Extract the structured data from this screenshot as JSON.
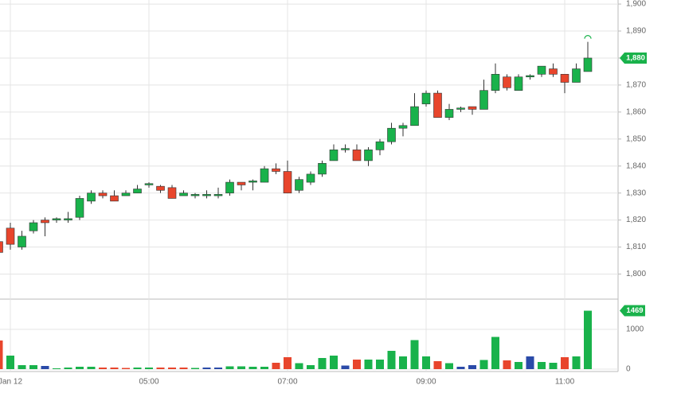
{
  "chart_data": {
    "type": "candlestick",
    "x": [
      "02:50",
      "03:00",
      "03:10",
      "03:20",
      "03:30",
      "03:40",
      "03:50",
      "04:00",
      "04:10",
      "04:20",
      "04:30",
      "04:40",
      "04:50",
      "05:00",
      "05:10",
      "05:20",
      "05:30",
      "05:40",
      "05:50",
      "06:00",
      "06:10",
      "06:20",
      "06:30",
      "06:40",
      "06:50",
      "07:00",
      "07:10",
      "07:20",
      "07:30",
      "07:40",
      "07:50",
      "08:00",
      "08:10",
      "08:20",
      "08:30",
      "08:40",
      "08:50",
      "09:00",
      "09:10",
      "09:20",
      "09:30",
      "09:40",
      "09:50",
      "10:00",
      "10:10",
      "10:20",
      "10:30",
      "10:40",
      "10:50",
      "11:00",
      "11:10",
      "11:20"
    ],
    "open": [
      1812,
      1817,
      1810,
      1816,
      1820,
      1820,
      1820,
      1821,
      1827,
      1830,
      1829,
      1829,
      1830,
      1833,
      1832.5,
      1832,
      1829,
      1829,
      1829,
      1829,
      1830,
      1834,
      1834,
      1834,
      1839,
      1838,
      1831,
      1834,
      1837,
      1842,
      1846,
      1846,
      1842,
      1846,
      1849,
      1854,
      1855,
      1863,
      1867,
      1858,
      1861,
      1862,
      1861,
      1868,
      1873,
      1868,
      1873,
      1874,
      1876,
      1874,
      1871,
      1875
    ],
    "high": [
      1812,
      1819,
      1816,
      1820,
      1821,
      1821,
      1823,
      1829,
      1831,
      1831,
      1831,
      1831,
      1833,
      1834,
      1833,
      1833,
      1831,
      1830,
      1831,
      1832,
      1835,
      1834,
      1835,
      1840,
      1841,
      1842,
      1836,
      1838,
      1842,
      1848,
      1848,
      1848,
      1847,
      1850,
      1856,
      1856,
      1867,
      1868,
      1868,
      1863,
      1862,
      1862,
      1872,
      1878,
      1874,
      1874,
      1874,
      1877,
      1878,
      1874,
      1878,
      1886
    ],
    "low": [
      1808,
      1809,
      1809,
      1815,
      1814,
      1819,
      1819,
      1820,
      1826,
      1828,
      1827,
      1829,
      1830,
      1832,
      1830,
      1828,
      1829,
      1828,
      1828,
      1828,
      1829,
      1831,
      1831,
      1834,
      1837,
      1830,
      1830,
      1833,
      1836,
      1842,
      1845,
      1842,
      1840,
      1844,
      1848,
      1851,
      1855,
      1862,
      1858,
      1857,
      1860,
      1859,
      1861,
      1867,
      1868,
      1868,
      1872,
      1873,
      1873,
      1867,
      1871,
      1875
    ],
    "close": [
      1808,
      1811,
      1814,
      1819,
      1819,
      1820.5,
      1820.5,
      1828,
      1830,
      1829,
      1827,
      1830,
      1831.5,
      1833.5,
      1831,
      1828,
      1830,
      1829.5,
      1829.5,
      1829.5,
      1834,
      1833,
      1834.5,
      1839,
      1838,
      1830,
      1835,
      1837,
      1841,
      1846,
      1846.5,
      1842,
      1846,
      1849,
      1854,
      1855,
      1862,
      1867,
      1858,
      1861,
      1861.5,
      1861,
      1868,
      1874,
      1869,
      1873,
      1873.5,
      1877,
      1874,
      1871,
      1876,
      1880
    ],
    "volume": [
      720,
      340,
      100,
      100,
      80,
      20,
      40,
      60,
      60,
      40,
      40,
      30,
      40,
      40,
      40,
      40,
      40,
      30,
      40,
      40,
      70,
      70,
      60,
      60,
      160,
      300,
      150,
      100,
      280,
      340,
      90,
      240,
      240,
      240,
      460,
      320,
      730,
      320,
      200,
      150,
      60,
      100,
      230,
      810,
      220,
      180,
      320,
      180,
      160,
      300,
      320,
      1469
    ],
    "volume_colors": [
      "#e8452c",
      "#19b24b",
      "#19b24b",
      "#19b24b",
      "#2a4aa8",
      "#19b24b",
      "#19b24b",
      "#19b24b",
      "#19b24b",
      "#e8452c",
      "#e8452c",
      "#e8452c",
      "#19b24b",
      "#19b24b",
      "#e8452c",
      "#e8452c",
      "#e8452c",
      "#19b24b",
      "#2a4aa8",
      "#2a4aa8",
      "#19b24b",
      "#19b24b",
      "#19b24b",
      "#19b24b",
      "#e8452c",
      "#e8452c",
      "#19b24b",
      "#19b24b",
      "#19b24b",
      "#19b24b",
      "#2a4aa8",
      "#e8452c",
      "#19b24b",
      "#19b24b",
      "#19b24b",
      "#19b24b",
      "#19b24b",
      "#19b24b",
      "#e8452c",
      "#19b24b",
      "#2a4aa8",
      "#2a4aa8",
      "#19b24b",
      "#19b24b",
      "#e8452c",
      "#19b24b",
      "#2a4aa8",
      "#19b24b",
      "#19b24b",
      "#e8452c",
      "#19b24b",
      "#19b24b"
    ],
    "up_color": "#19b24b",
    "down_color": "#e8452c",
    "ylim": [
      1791,
      1901.5
    ],
    "yticks": [
      {
        "value": 1800,
        "label": "1,800"
      },
      {
        "value": 1810,
        "label": "1,810"
      },
      {
        "value": 1820,
        "label": "1,820"
      },
      {
        "value": 1830,
        "label": "1,830"
      },
      {
        "value": 1840,
        "label": "1,840"
      },
      {
        "value": 1850,
        "label": "1,850"
      },
      {
        "value": 1860,
        "label": "1,860"
      },
      {
        "value": 1870,
        "label": "1,870"
      },
      {
        "value": 1880,
        "label": "1,880"
      },
      {
        "value": 1890,
        "label": "1,890"
      },
      {
        "value": 1900,
        "label": "1,900"
      }
    ],
    "volume_ylim": [
      0,
      1740
    ],
    "volume_yticks": [
      0,
      1000
    ],
    "xticks": [
      {
        "value": "03:00",
        "label": "Jan 12"
      },
      "05:00",
      "07:00",
      "09:00",
      "11:00"
    ],
    "last_price": {
      "value": 1880,
      "label": "1,880"
    },
    "grid": true
  }
}
